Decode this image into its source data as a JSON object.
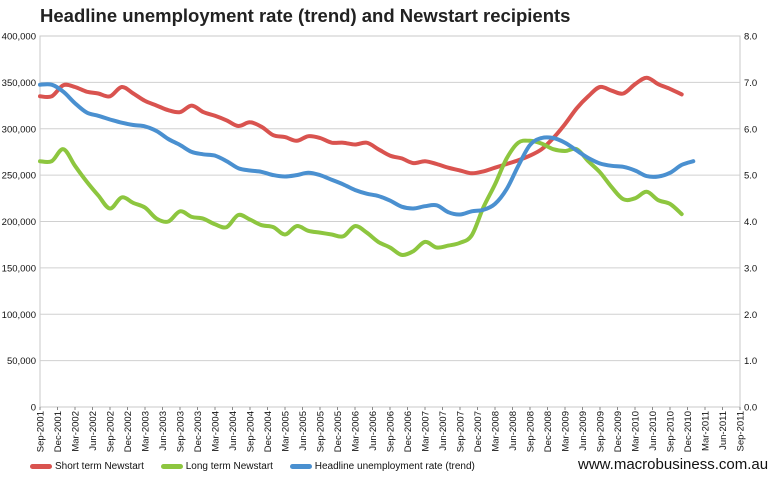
{
  "chart_data": {
    "type": "line",
    "title": "Headline unemployment rate (trend) and Newstart recipients",
    "xlabel": "",
    "ylabel": "",
    "y_left": {
      "range": [
        0,
        400000
      ],
      "ticks": [
        "0",
        "50,000",
        "100,000",
        "150,000",
        "200,000",
        "250,000",
        "300,000",
        "350,000",
        "400,000"
      ]
    },
    "y_right": {
      "range": [
        0,
        8
      ],
      "ticks": [
        "0.0",
        "1.0",
        "2.0",
        "3.0",
        "4.0",
        "5.0",
        "6.0",
        "7.0",
        "8.0"
      ]
    },
    "x_range": [
      0,
      120
    ],
    "x_ticks": [
      {
        "i": 0,
        "label": "Sep-2001"
      },
      {
        "i": 3,
        "label": "Dec-2001"
      },
      {
        "i": 6,
        "label": "Mar-2002"
      },
      {
        "i": 9,
        "label": "Jun-2002"
      },
      {
        "i": 12,
        "label": "Sep-2002"
      },
      {
        "i": 15,
        "label": "Dec-2002"
      },
      {
        "i": 18,
        "label": "Mar-2003"
      },
      {
        "i": 21,
        "label": "Jun-2003"
      },
      {
        "i": 24,
        "label": "Sep-2003"
      },
      {
        "i": 27,
        "label": "Dec-2003"
      },
      {
        "i": 30,
        "label": "Mar-2004"
      },
      {
        "i": 33,
        "label": "Jun-2004"
      },
      {
        "i": 36,
        "label": "Sep-2004"
      },
      {
        "i": 39,
        "label": "Dec-2004"
      },
      {
        "i": 42,
        "label": "Mar-2005"
      },
      {
        "i": 45,
        "label": "Jun-2005"
      },
      {
        "i": 48,
        "label": "Sep-2005"
      },
      {
        "i": 51,
        "label": "Dec-2005"
      },
      {
        "i": 54,
        "label": "Mar-2006"
      },
      {
        "i": 57,
        "label": "Jun-2006"
      },
      {
        "i": 60,
        "label": "Sep-2006"
      },
      {
        "i": 63,
        "label": "Dec-2006"
      },
      {
        "i": 66,
        "label": "Mar-2007"
      },
      {
        "i": 69,
        "label": "Jun-2007"
      },
      {
        "i": 72,
        "label": "Sep-2007"
      },
      {
        "i": 75,
        "label": "Dec-2007"
      },
      {
        "i": 78,
        "label": "Mar-2008"
      },
      {
        "i": 81,
        "label": "Jun-2008"
      },
      {
        "i": 84,
        "label": "Sep-2008"
      },
      {
        "i": 87,
        "label": "Dec-2008"
      },
      {
        "i": 90,
        "label": "Mar-2009"
      },
      {
        "i": 93,
        "label": "Jun-2009"
      },
      {
        "i": 96,
        "label": "Sep-2009"
      },
      {
        "i": 99,
        "label": "Dec-2009"
      },
      {
        "i": 102,
        "label": "Mar-2010"
      },
      {
        "i": 105,
        "label": "Jun-2010"
      },
      {
        "i": 108,
        "label": "Sep-2010"
      },
      {
        "i": 111,
        "label": "Dec-2010"
      },
      {
        "i": 114,
        "label": "Mar-2011"
      },
      {
        "i": 117,
        "label": "Jun-2011"
      },
      {
        "i": 120,
        "label": "Sep-2011"
      }
    ],
    "grid": true,
    "legend": "bottom-left",
    "series": [
      {
        "name": "Short term Newstart",
        "axis": "left",
        "color": "#d9534f",
        "points": [
          [
            0,
            335000
          ],
          [
            2,
            335000
          ],
          [
            4,
            347000
          ],
          [
            6,
            345000
          ],
          [
            8,
            340000
          ],
          [
            10,
            338000
          ],
          [
            12,
            335000
          ],
          [
            14,
            345000
          ],
          [
            16,
            338000
          ],
          [
            18,
            330000
          ],
          [
            20,
            325000
          ],
          [
            22,
            320000
          ],
          [
            24,
            318000
          ],
          [
            26,
            325000
          ],
          [
            28,
            318000
          ],
          [
            30,
            314000
          ],
          [
            32,
            309000
          ],
          [
            34,
            303000
          ],
          [
            36,
            307000
          ],
          [
            38,
            302000
          ],
          [
            40,
            293000
          ],
          [
            42,
            291000
          ],
          [
            44,
            287000
          ],
          [
            46,
            292000
          ],
          [
            48,
            290000
          ],
          [
            50,
            285000
          ],
          [
            52,
            285000
          ],
          [
            54,
            283000
          ],
          [
            56,
            285000
          ],
          [
            58,
            278000
          ],
          [
            60,
            271000
          ],
          [
            62,
            268000
          ],
          [
            64,
            263000
          ],
          [
            66,
            265000
          ],
          [
            68,
            262000
          ],
          [
            70,
            258000
          ],
          [
            72,
            255000
          ],
          [
            74,
            252000
          ],
          [
            76,
            254000
          ],
          [
            78,
            258000
          ],
          [
            80,
            262000
          ],
          [
            82,
            266000
          ],
          [
            84,
            271000
          ],
          [
            86,
            278000
          ],
          [
            88,
            290000
          ],
          [
            90,
            305000
          ],
          [
            92,
            322000
          ],
          [
            94,
            335000
          ],
          [
            96,
            345000
          ],
          [
            98,
            341000
          ],
          [
            100,
            338000
          ],
          [
            102,
            348000
          ],
          [
            104,
            355000
          ],
          [
            106,
            348000
          ],
          [
            108,
            343000
          ],
          [
            110,
            337000
          ]
        ]
      },
      {
        "name": "Long term Newstart",
        "axis": "left",
        "color": "#8dc63f",
        "points": [
          [
            0,
            265000
          ],
          [
            2,
            265000
          ],
          [
            4,
            278000
          ],
          [
            6,
            260000
          ],
          [
            8,
            243000
          ],
          [
            10,
            228000
          ],
          [
            12,
            214000
          ],
          [
            14,
            226000
          ],
          [
            16,
            220000
          ],
          [
            18,
            215000
          ],
          [
            20,
            203000
          ],
          [
            22,
            200000
          ],
          [
            24,
            211000
          ],
          [
            26,
            205000
          ],
          [
            28,
            203000
          ],
          [
            30,
            197000
          ],
          [
            32,
            194000
          ],
          [
            34,
            207000
          ],
          [
            36,
            202000
          ],
          [
            38,
            196000
          ],
          [
            40,
            194000
          ],
          [
            42,
            186000
          ],
          [
            44,
            195000
          ],
          [
            46,
            190000
          ],
          [
            48,
            188000
          ],
          [
            50,
            186000
          ],
          [
            52,
            184000
          ],
          [
            54,
            195000
          ],
          [
            56,
            188000
          ],
          [
            58,
            178000
          ],
          [
            60,
            172000
          ],
          [
            62,
            164000
          ],
          [
            64,
            168000
          ],
          [
            66,
            178000
          ],
          [
            68,
            172000
          ],
          [
            70,
            174000
          ],
          [
            72,
            177000
          ],
          [
            74,
            185000
          ],
          [
            76,
            215000
          ],
          [
            78,
            240000
          ],
          [
            80,
            268000
          ],
          [
            82,
            285000
          ],
          [
            84,
            287000
          ],
          [
            86,
            284000
          ],
          [
            88,
            278000
          ],
          [
            90,
            276000
          ],
          [
            92,
            278000
          ],
          [
            94,
            265000
          ],
          [
            96,
            253000
          ],
          [
            98,
            237000
          ],
          [
            100,
            224000
          ],
          [
            102,
            225000
          ],
          [
            104,
            232000
          ],
          [
            106,
            223000
          ],
          [
            108,
            219000
          ],
          [
            110,
            208000
          ]
        ]
      },
      {
        "name": "Headline unemployment rate (trend)",
        "axis": "right",
        "color": "#4a90d0",
        "points": [
          [
            0,
            6.95
          ],
          [
            2,
            6.95
          ],
          [
            4,
            6.8
          ],
          [
            6,
            6.55
          ],
          [
            8,
            6.35
          ],
          [
            10,
            6.28
          ],
          [
            12,
            6.2
          ],
          [
            14,
            6.13
          ],
          [
            16,
            6.08
          ],
          [
            18,
            6.05
          ],
          [
            20,
            5.95
          ],
          [
            22,
            5.78
          ],
          [
            24,
            5.65
          ],
          [
            26,
            5.5
          ],
          [
            28,
            5.45
          ],
          [
            30,
            5.42
          ],
          [
            32,
            5.3
          ],
          [
            34,
            5.15
          ],
          [
            36,
            5.1
          ],
          [
            38,
            5.07
          ],
          [
            40,
            5.0
          ],
          [
            42,
            4.97
          ],
          [
            44,
            5.0
          ],
          [
            46,
            5.05
          ],
          [
            48,
            5.0
          ],
          [
            50,
            4.9
          ],
          [
            52,
            4.8
          ],
          [
            54,
            4.68
          ],
          [
            56,
            4.6
          ],
          [
            58,
            4.55
          ],
          [
            60,
            4.45
          ],
          [
            62,
            4.32
          ],
          [
            64,
            4.28
          ],
          [
            66,
            4.33
          ],
          [
            68,
            4.35
          ],
          [
            70,
            4.2
          ],
          [
            72,
            4.15
          ],
          [
            74,
            4.22
          ],
          [
            76,
            4.25
          ],
          [
            78,
            4.38
          ],
          [
            80,
            4.7
          ],
          [
            82,
            5.2
          ],
          [
            84,
            5.65
          ],
          [
            86,
            5.8
          ],
          [
            88,
            5.8
          ],
          [
            90,
            5.7
          ],
          [
            92,
            5.53
          ],
          [
            94,
            5.37
          ],
          [
            96,
            5.25
          ],
          [
            98,
            5.2
          ],
          [
            100,
            5.18
          ],
          [
            102,
            5.1
          ],
          [
            104,
            4.98
          ],
          [
            106,
            4.97
          ],
          [
            108,
            5.05
          ],
          [
            110,
            5.22
          ],
          [
            112,
            5.3
          ]
        ]
      }
    ]
  },
  "footer": {
    "url": "www.macrobusiness.com.au"
  }
}
